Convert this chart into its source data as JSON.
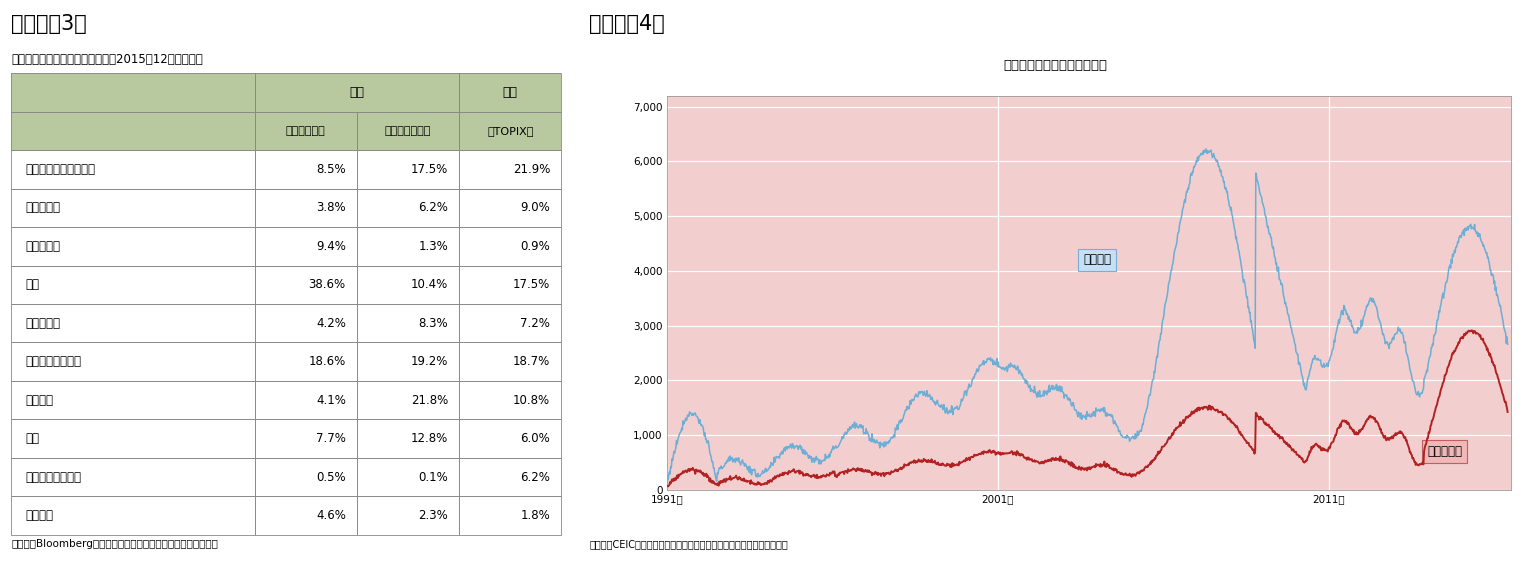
{
  "fig3_title": "（図表－3）",
  "fig3_subtitle": "業種構成の日中比較（時価総額、2015年12月末現在）",
  "fig3_source": "（資料）Bloombergのデータをニッセイ基礎研究所で集計・作成",
  "table_subheaders": [
    "",
    "（上海総合）",
    "（深セン総合）",
    "（TOPIX）"
  ],
  "table_rows": [
    [
      "一般消費財・サービス",
      "8.5%",
      "17.5%",
      "21.9%"
    ],
    [
      "生活必需品",
      "3.8%",
      "6.2%",
      "9.0%"
    ],
    [
      "エネルギー",
      "9.4%",
      "1.3%",
      "0.9%"
    ],
    [
      "金融",
      "38.6%",
      "10.4%",
      "17.5%"
    ],
    [
      "ヘルスケア",
      "4.2%",
      "8.3%",
      "7.2%"
    ],
    [
      "資本財・サービス",
      "18.6%",
      "19.2%",
      "18.7%"
    ],
    [
      "情報技術",
      "4.1%",
      "21.8%",
      "10.8%"
    ],
    [
      "素材",
      "7.7%",
      "12.8%",
      "6.0%"
    ],
    [
      "電気通信サービス",
      "0.5%",
      "0.1%",
      "6.2%"
    ],
    [
      "公益事業",
      "4.6%",
      "2.3%",
      "1.8%"
    ]
  ],
  "header_bg_color": "#b8c9a0",
  "table_border_color": "#888888",
  "fig4_title": "（図表－4）",
  "fig4_chart_title": "上海総合と深セン総合の推移",
  "fig4_source": "（資料）CEIC（出所は上海証券取引所、深セン証券取引所）を元に作成",
  "chart_bg_color": "#f2cece",
  "shanghai_color": "#6baed6",
  "shenzhen_color": "#b22222",
  "shanghai_label": "上海総合",
  "shenzhen_label": "深セン総合",
  "yticks": [
    0,
    1000,
    2000,
    3000,
    4000,
    5000,
    6000,
    7000
  ],
  "xtick_labels": [
    "1991年",
    "2001年",
    "2011年"
  ],
  "ylim": [
    0,
    7200
  ],
  "xlim_start": 1991.0,
  "xlim_end": 2016.5
}
